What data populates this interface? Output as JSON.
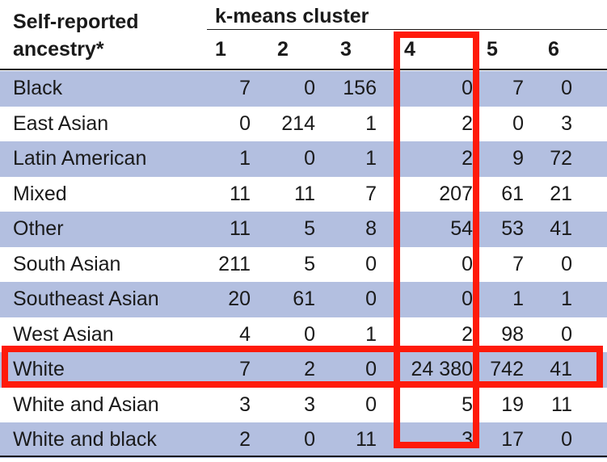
{
  "table": {
    "row_header_label": "Self-reported ancestry*",
    "row_header_line1": "Self-reported",
    "row_header_line2": "ancestry*",
    "column_group_label": "k-means cluster",
    "columns": [
      "1",
      "2",
      "3",
      "4",
      "5",
      "6"
    ],
    "rows": [
      {
        "label": "Black",
        "values": [
          "7",
          "0",
          "156",
          "0",
          "7",
          "0"
        ],
        "shaded": true
      },
      {
        "label": "East Asian",
        "values": [
          "0",
          "214",
          "1",
          "2",
          "0",
          "3"
        ],
        "shaded": false
      },
      {
        "label": "Latin American",
        "values": [
          "1",
          "0",
          "1",
          "2",
          "9",
          "72"
        ],
        "shaded": true
      },
      {
        "label": "Mixed",
        "values": [
          "11",
          "11",
          "7",
          "207",
          "61",
          "21"
        ],
        "shaded": false
      },
      {
        "label": "Other",
        "values": [
          "11",
          "5",
          "8",
          "54",
          "53",
          "41"
        ],
        "shaded": true
      },
      {
        "label": "South Asian",
        "values": [
          "211",
          "5",
          "0",
          "0",
          "7",
          "0"
        ],
        "shaded": false
      },
      {
        "label": "Southeast Asian",
        "values": [
          "20",
          "61",
          "0",
          "0",
          "1",
          "1"
        ],
        "shaded": true
      },
      {
        "label": "West Asian",
        "values": [
          "4",
          "0",
          "1",
          "2",
          "98",
          "0"
        ],
        "shaded": false
      },
      {
        "label": "White",
        "values": [
          "7",
          "2",
          "0",
          "24 380",
          "742",
          "41"
        ],
        "shaded": true
      },
      {
        "label": "White and Asian",
        "values": [
          "3",
          "3",
          "0",
          "5",
          "19",
          "11"
        ],
        "shaded": false
      },
      {
        "label": "White and black",
        "values": [
          "2",
          "0",
          "11",
          "3",
          "17",
          "0"
        ],
        "shaded": true
      }
    ]
  },
  "highlights": {
    "column": "4",
    "row": "White",
    "color": "#ff1a0a"
  },
  "colors": {
    "shaded_row": "#b3bfe0",
    "text": "#1a1a1a"
  }
}
